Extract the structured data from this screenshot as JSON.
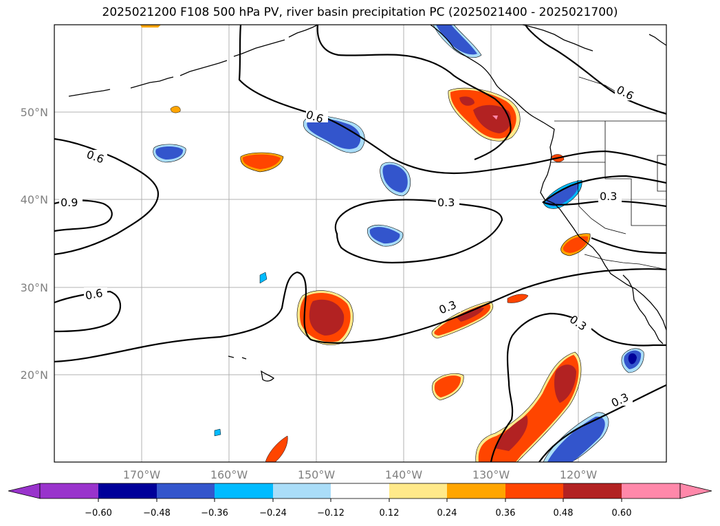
{
  "title": "2025021200 F108 500 hPa PV, river basin precipitation PC (2025021400 - 2025021700)",
  "lat_labels": [
    "50°N",
    "40°N",
    "30°N",
    "20°N"
  ],
  "lon_labels": [
    "170°W",
    "160°W",
    "150°W",
    "140°W",
    "130°W",
    "120°W"
  ],
  "contour_labels": [
    "0.6",
    "0.6",
    "0.9",
    "0.6",
    "0.6",
    "0.3",
    "0.3",
    "0.3",
    "0.3",
    "0.3"
  ],
  "colorbar": {
    "ticks": [
      "−0.60",
      "−0.48",
      "−0.36",
      "−0.24",
      "−0.12",
      "0.12",
      "0.24",
      "0.36",
      "0.48",
      "0.60"
    ],
    "colors": [
      "#9933cc",
      "#000099",
      "#3355cc",
      "#00bbff",
      "#aaddf8",
      "#ffffff",
      "#ffe98a",
      "#ffa500",
      "#ff4500",
      "#b22222",
      "#ff88aa"
    ]
  },
  "colors": {
    "neg_light": "#aaddf8",
    "neg_mid": "#00bbff",
    "neg_strong": "#3355cc",
    "neg_max": "#000099",
    "pos_light": "#ffe98a",
    "pos_mid": "#ffa500",
    "pos_strong": "#ff4500",
    "pos_max": "#b22222",
    "pos_extreme": "#ff88aa"
  }
}
